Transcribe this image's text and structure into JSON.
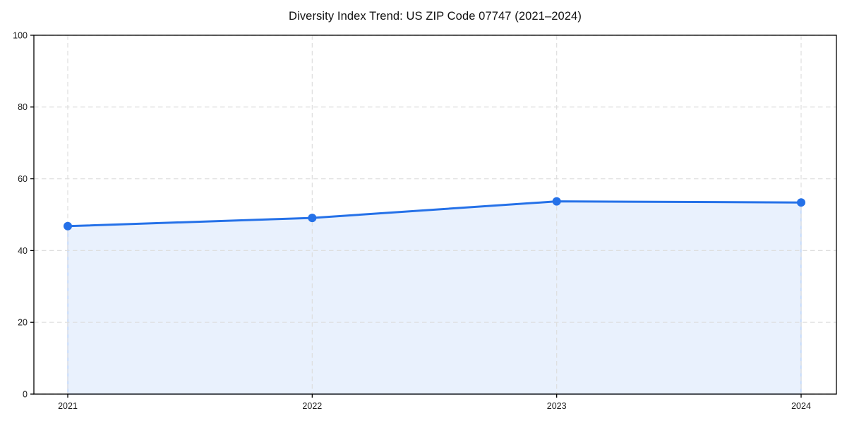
{
  "chart_data": {
    "type": "area",
    "title": "Diversity Index Trend: US ZIP Code 07747 (2021–2024)",
    "categories": [
      "2021",
      "2022",
      "2023",
      "2024"
    ],
    "series": [
      {
        "name": "Diversity Index",
        "values": [
          46.8,
          49.1,
          53.7,
          53.4
        ]
      }
    ],
    "xlabel": "",
    "ylabel": "",
    "ylim": [
      0,
      100
    ],
    "yticks": [
      0,
      20,
      40,
      60,
      80,
      100
    ],
    "grid": true,
    "grid_style": "dashed",
    "legend": "none",
    "marker": "circle",
    "colors": {
      "line": "#2571e8",
      "fill": "#e9f1fd",
      "area_edge": "rgba(37,113,232,0.28)",
      "grid": "#dedede",
      "axis": "#000000",
      "text": "#1a1a1a",
      "background": "#ffffff"
    }
  }
}
